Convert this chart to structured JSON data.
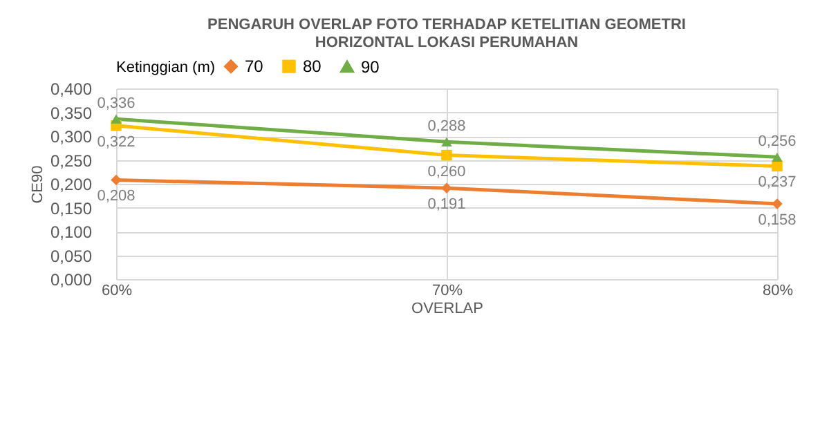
{
  "chart_data": {
    "type": "line",
    "title": "PENGARUH OVERLAP FOTO TERHADAP KETELITIAN GEOMETRI HORIZONTAL LOKASI PERUMAHAN",
    "xlabel": "OVERLAP",
    "ylabel": "CE90",
    "legend_title": "Ketinggian (m)",
    "legend": "top",
    "grid": true,
    "line_style": "solid",
    "categories": [
      "60%",
      "70%",
      "80%"
    ],
    "ylim": [
      0,
      0.4
    ],
    "yticks": [
      {
        "value": 0,
        "label": "0,000"
      },
      {
        "value": 0.05,
        "label": "0,050"
      },
      {
        "value": 0.1,
        "label": "0,100"
      },
      {
        "value": 0.15,
        "label": "0,150"
      },
      {
        "value": 0.2,
        "label": "0,200"
      },
      {
        "value": 0.25,
        "label": "0,250"
      },
      {
        "value": 0.3,
        "label": "0,300"
      },
      {
        "value": 0.35,
        "label": "0,350"
      },
      {
        "value": 0.4,
        "label": "0,400"
      }
    ],
    "series": [
      {
        "name": "70",
        "color": "#ed7d31",
        "marker": "diamond",
        "values": [
          0.208,
          0.191,
          0.158
        ],
        "value_labels": [
          "0,208",
          "0,191",
          "0,158"
        ]
      },
      {
        "name": "80",
        "color": "#ffc000",
        "marker": "square",
        "values": [
          0.322,
          0.26,
          0.237
        ],
        "value_labels": [
          "0,322",
          "0,260",
          "0,237"
        ]
      },
      {
        "name": "90",
        "color": "#70ad47",
        "marker": "triangle",
        "values": [
          0.336,
          0.288,
          0.256
        ],
        "value_labels": [
          "0,336",
          "0,288",
          "0,256"
        ]
      }
    ]
  }
}
